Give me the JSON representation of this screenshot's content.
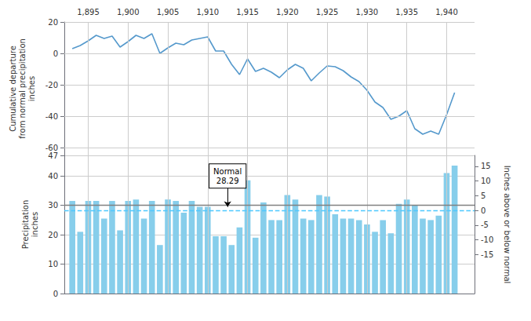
{
  "chart_data": [
    {
      "type": "line",
      "x": [
        1893,
        1894,
        1895,
        1896,
        1897,
        1898,
        1899,
        1900,
        1901,
        1902,
        1903,
        1904,
        1905,
        1906,
        1907,
        1908,
        1909,
        1910,
        1911,
        1912,
        1913,
        1914,
        1915,
        1916,
        1917,
        1918,
        1919,
        1920,
        1921,
        1922,
        1923,
        1924,
        1925,
        1926,
        1927,
        1928,
        1929,
        1930,
        1931,
        1932,
        1933,
        1934,
        1935,
        1936,
        1937,
        1938,
        1939,
        1940,
        1941
      ],
      "values": [
        3.0,
        5.0,
        8.0,
        11.5,
        9.5,
        11.0,
        4.0,
        7.5,
        11.5,
        9.5,
        12.5,
        0.0,
        3.5,
        6.5,
        5.5,
        8.5,
        9.5,
        10.5,
        1.5,
        1.5,
        -7.0,
        -13.5,
        -3.5,
        -11.5,
        -9.5,
        -12.0,
        -15.5,
        -10.5,
        -7.0,
        -9.5,
        -17.5,
        -12.5,
        -8.0,
        -8.5,
        -11.0,
        -15.0,
        -18.0,
        -23.5,
        -31.0,
        -34.5,
        -42.0,
        -40.0,
        -36.5,
        -48.0,
        -51.5,
        -49.5,
        -51.5,
        -39.0,
        -25.0
      ],
      "color": "#5599CC",
      "xlim": [
        1892.0,
        1943.5
      ],
      "xticks": [
        1895,
        1900,
        1905,
        1910,
        1915,
        1920,
        1925,
        1930,
        1935,
        1940
      ],
      "ylim": [
        -65,
        20
      ],
      "yticks": [
        -60,
        -40,
        -20,
        0,
        20
      ],
      "ylabel": "Cumulative departure\nfrom normal precipitation\ninches",
      "grid": true
    },
    {
      "type": "bar",
      "x": [
        1893,
        1894,
        1895,
        1896,
        1897,
        1898,
        1899,
        1900,
        1901,
        1902,
        1903,
        1904,
        1905,
        1906,
        1907,
        1908,
        1909,
        1910,
        1911,
        1912,
        1913,
        1914,
        1915,
        1916,
        1917,
        1918,
        1919,
        1920,
        1921,
        1922,
        1923,
        1924,
        1925,
        1926,
        1927,
        1928,
        1929,
        1930,
        1931,
        1932,
        1933,
        1934,
        1935,
        1936,
        1937,
        1938,
        1939,
        1940,
        1941
      ],
      "values": [
        31.5,
        21.0,
        31.5,
        31.5,
        25.5,
        31.5,
        21.5,
        31.5,
        32.0,
        25.5,
        31.5,
        16.5,
        32.0,
        31.5,
        27.5,
        31.5,
        29.5,
        29.5,
        19.5,
        19.5,
        16.5,
        22.5,
        38.5,
        19.0,
        31.0,
        25.0,
        25.0,
        33.5,
        32.0,
        25.5,
        25.0,
        33.5,
        33.0,
        27.0,
        25.5,
        25.5,
        25.0,
        23.5,
        21.0,
        25.0,
        20.5,
        30.5,
        32.0,
        30.0,
        25.5,
        25.0,
        26.5,
        41.0,
        43.5
      ],
      "color": "#87CEEB",
      "xlim": [
        1892.0,
        1943.5
      ],
      "xticks": [
        1895,
        1900,
        1905,
        1910,
        1915,
        1920,
        1925,
        1930,
        1935,
        1940
      ],
      "ylim": [
        0,
        47
      ],
      "yticks": [
        0,
        10,
        20,
        30,
        40
      ],
      "ylabel": "Precipitation\ninches",
      "y2lim": [
        -28.29,
        18.71
      ],
      "y2ticks": [
        -15,
        -10,
        -5,
        0,
        5,
        10,
        15
      ],
      "y2label": "Inches above or below normal",
      "grid": true,
      "tick_labels": "y",
      "lines": [
        {
          "y": 30.09,
          "color": "#808080",
          "line_style": "solid"
        },
        {
          "y": 28.29,
          "color": "#4DC8FF",
          "line_style": "dashed"
        }
      ],
      "annotations": [
        {
          "text": "Normal\n28.29",
          "x": 1912.5,
          "y": 36.0,
          "arrow_y": 29.5
        }
      ]
    }
  ]
}
